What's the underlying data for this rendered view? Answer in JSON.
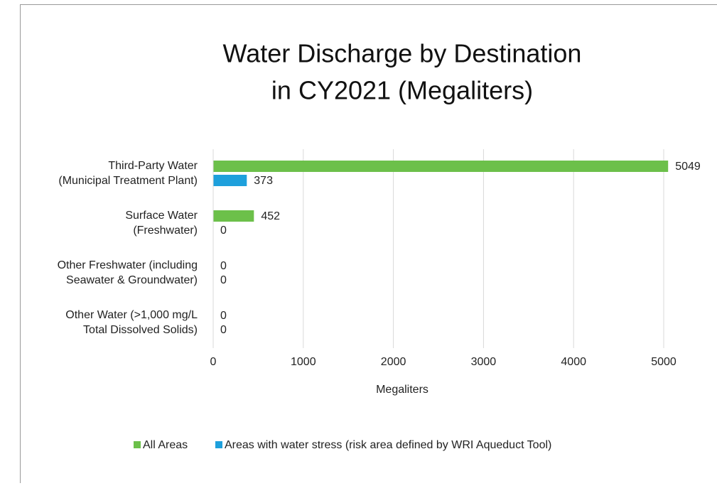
{
  "chart_data": {
    "type": "bar",
    "orientation": "horizontal",
    "title": [
      "Water Discharge by Destination",
      "in CY2021 (Megaliters)"
    ],
    "categories": [
      [
        "Third-Party Water",
        "(Municipal Treatment Plant)"
      ],
      [
        "Surface Water",
        "(Freshwater)"
      ],
      [
        "Other Freshwater (including",
        "Seawater & Groundwater)"
      ],
      [
        "Other Water (>1,000 mg/L",
        "Total Dissolved Solids)"
      ]
    ],
    "series": [
      {
        "name": "All Areas",
        "color": "#6cc04a",
        "values": [
          5049,
          452,
          0,
          0
        ]
      },
      {
        "name": "Areas with water stress (risk area defined by WRI Aqueduct Tool)",
        "color": "#1ea0dc",
        "values": [
          373,
          0,
          0,
          0
        ]
      }
    ],
    "xlabel": "Megaliters",
    "xlim": [
      0,
      5000
    ],
    "xticks": [
      0,
      1000,
      2000,
      3000,
      4000,
      5000
    ],
    "grid": true,
    "legend": "bottom"
  }
}
